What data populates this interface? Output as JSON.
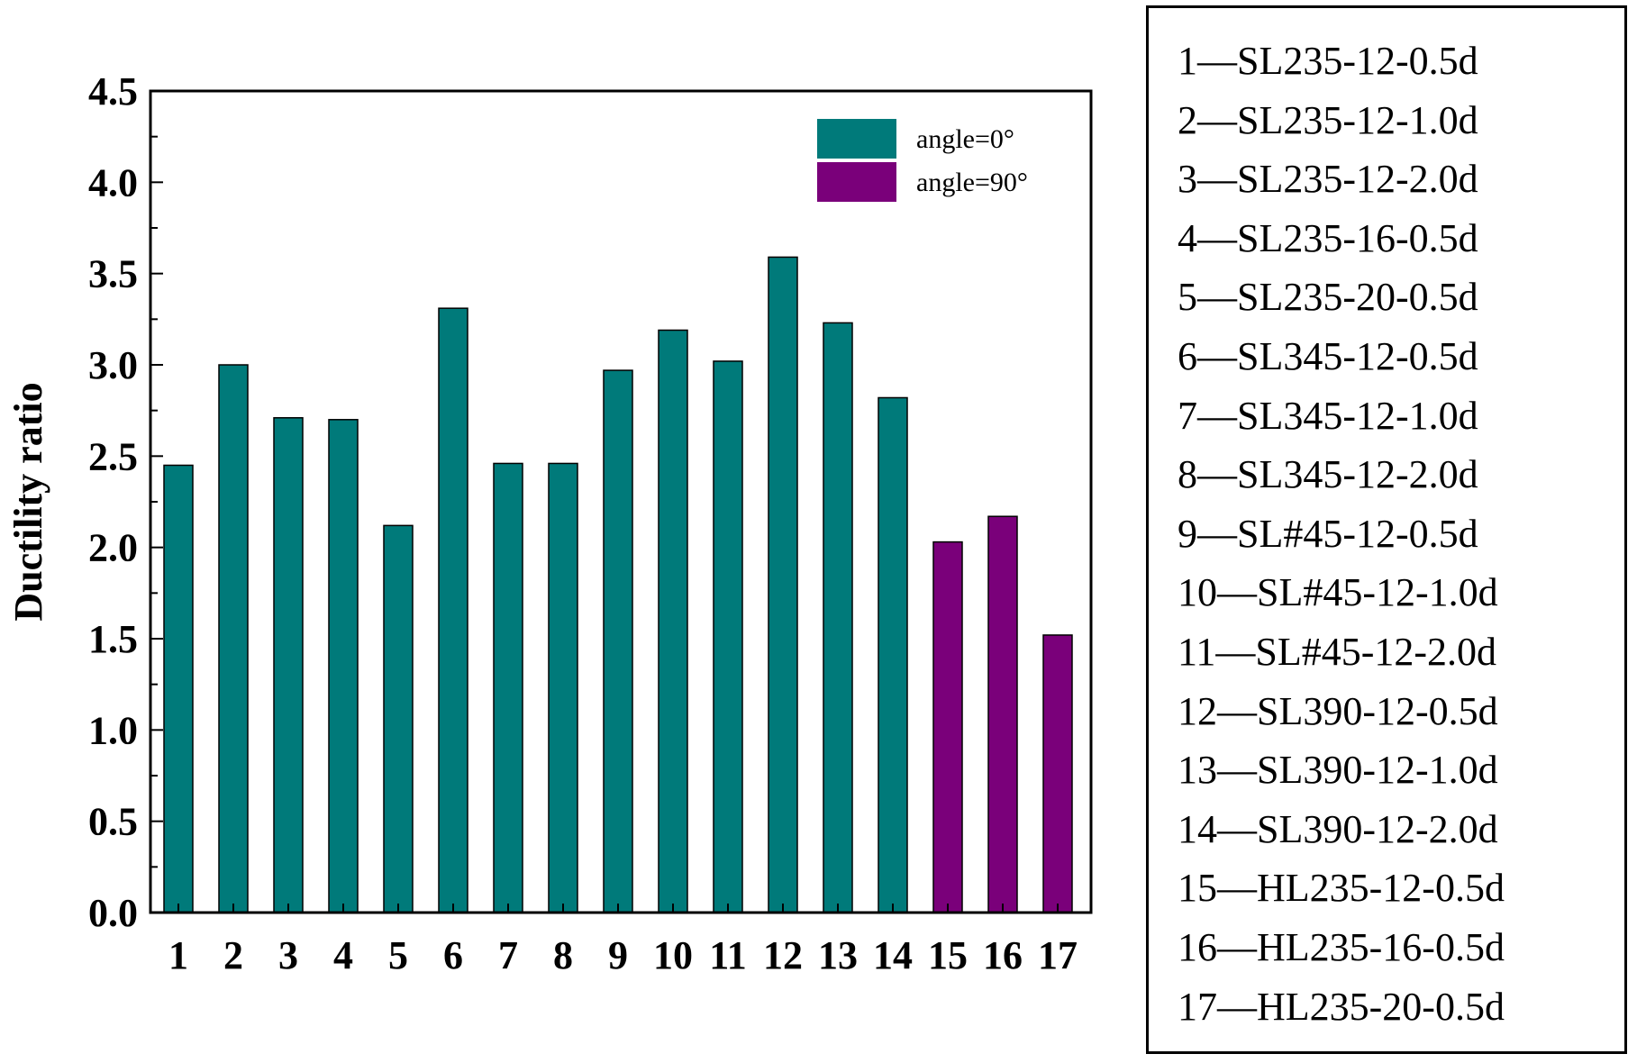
{
  "chart_data": {
    "type": "bar",
    "categories": [
      "1",
      "2",
      "3",
      "4",
      "5",
      "6",
      "7",
      "8",
      "9",
      "10",
      "11",
      "12",
      "13",
      "14",
      "15",
      "16",
      "17"
    ],
    "values": [
      2.45,
      3.0,
      2.71,
      2.7,
      2.12,
      3.31,
      2.46,
      2.46,
      2.97,
      3.19,
      3.02,
      3.59,
      3.23,
      2.82,
      2.03,
      2.17,
      1.52
    ],
    "bar_series": [
      "angle=0°",
      "angle=0°",
      "angle=0°",
      "angle=0°",
      "angle=0°",
      "angle=0°",
      "angle=0°",
      "angle=0°",
      "angle=0°",
      "angle=0°",
      "angle=0°",
      "angle=0°",
      "angle=0°",
      "angle=0°",
      "angle=90°",
      "angle=90°",
      "angle=90°"
    ],
    "series": [
      {
        "name": "angle=0°",
        "color": "#007a7a"
      },
      {
        "name": "angle=90°",
        "color": "#7a007a"
      }
    ],
    "ylabel": "Ductility ratio",
    "xlabel": "",
    "ylim": [
      0,
      4.5
    ],
    "yticks": [
      "0.0",
      "0.5",
      "1.0",
      "1.5",
      "2.0",
      "2.5",
      "3.0",
      "3.5",
      "4.0",
      "4.5"
    ],
    "legend_position": "top-right",
    "grid": false
  },
  "specimen_key": [
    "1—SL235-12-0.5d",
    "2—SL235-12-1.0d",
    "3—SL235-12-2.0d",
    "4—SL235-16-0.5d",
    "5—SL235-20-0.5d",
    "6—SL345-12-0.5d",
    "7—SL345-12-1.0d",
    "8—SL345-12-2.0d",
    "9—SL#45-12-0.5d",
    "10—SL#45-12-1.0d",
    "11—SL#45-12-2.0d",
    "12—SL390-12-0.5d",
    "13—SL390-12-1.0d",
    "14—SL390-12-2.0d",
    "15—HL235-12-0.5d",
    "16—HL235-16-0.5d",
    "17—HL235-20-0.5d"
  ]
}
